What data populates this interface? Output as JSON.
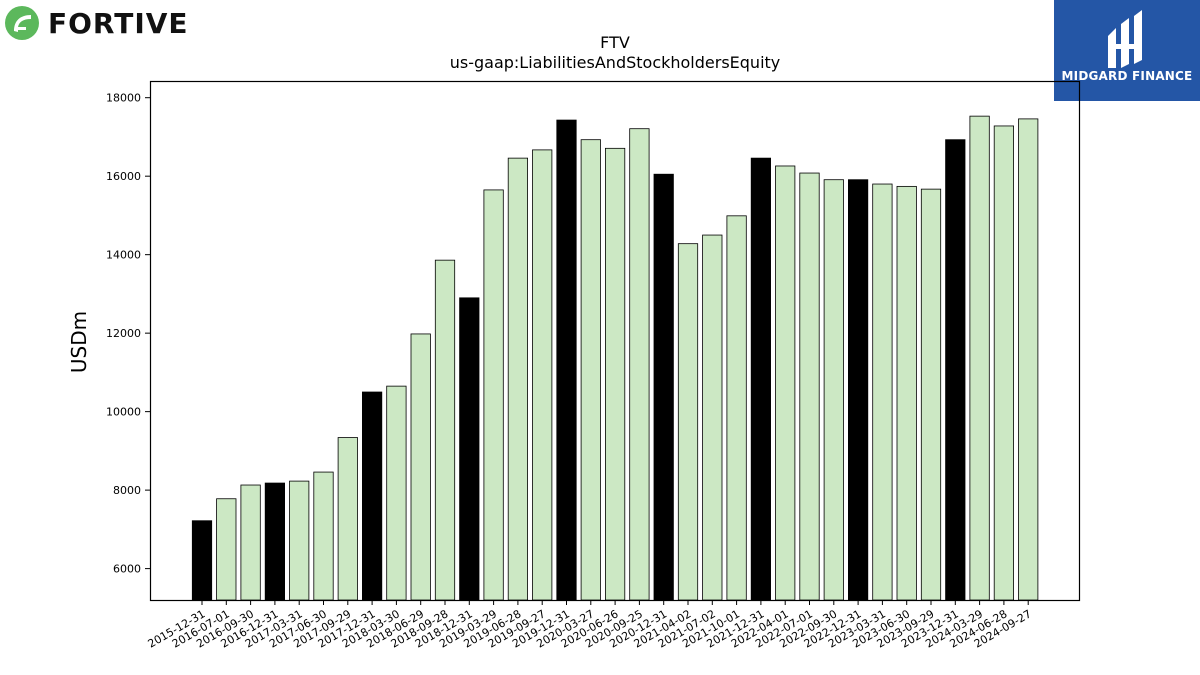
{
  "logos": {
    "company_name": "FORTIVE",
    "company_icon": "fortive-leaf-icon",
    "brand_name": "MIDGARD FINANCE",
    "brand_icon": "midgard-mark-icon",
    "brand_color": "#2456a6"
  },
  "chart_data": {
    "type": "bar",
    "title": "FTV",
    "subtitle": "us-gaap:LiabilitiesAndStockholdersEquity",
    "xlabel": "",
    "ylabel": "USDm",
    "ylim": [
      5200,
      18400
    ],
    "yticks": [
      6000,
      8000,
      10000,
      12000,
      14000,
      16000,
      18000
    ],
    "grid": false,
    "colors": {
      "quarter": "#cce8c4",
      "annual": "#000000",
      "edge": "#000000"
    },
    "categories": [
      "2015-12-31",
      "2016-07-01",
      "2016-09-30",
      "2016-12-31",
      "2017-03-31",
      "2017-06-30",
      "2017-09-29",
      "2017-12-31",
      "2018-03-30",
      "2018-06-29",
      "2018-09-28",
      "2018-12-31",
      "2019-03-29",
      "2019-06-28",
      "2019-09-27",
      "2019-12-31",
      "2020-03-27",
      "2020-06-26",
      "2020-09-25",
      "2020-12-31",
      "2021-04-02",
      "2021-07-02",
      "2021-10-01",
      "2021-12-31",
      "2022-04-01",
      "2022-07-01",
      "2022-09-30",
      "2022-12-31",
      "2023-03-31",
      "2023-06-30",
      "2023-09-29",
      "2023-12-31",
      "2024-03-29",
      "2024-06-28",
      "2024-09-27"
    ],
    "values": [
      7220,
      7780,
      8130,
      8180,
      8230,
      8460,
      9340,
      10500,
      10650,
      11980,
      13860,
      12900,
      15650,
      16460,
      16670,
      17430,
      16930,
      16710,
      17210,
      16050,
      14280,
      14500,
      14990,
      16460,
      16260,
      16080,
      15910,
      15910,
      15800,
      15740,
      15670,
      16930,
      17530,
      17280,
      17460
    ],
    "annual": [
      true,
      false,
      false,
      true,
      false,
      false,
      false,
      true,
      false,
      false,
      false,
      true,
      false,
      false,
      false,
      true,
      false,
      false,
      false,
      true,
      false,
      false,
      false,
      true,
      false,
      false,
      false,
      true,
      false,
      false,
      false,
      true,
      false,
      false,
      false
    ]
  }
}
